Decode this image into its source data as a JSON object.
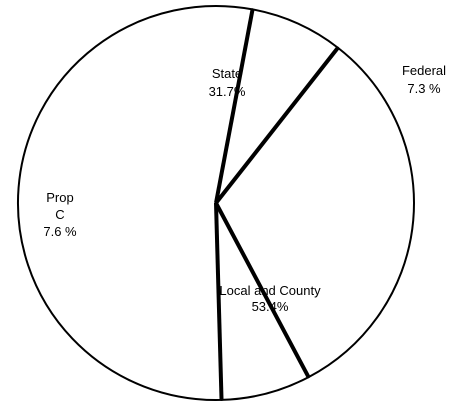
{
  "chart_data": {
    "type": "pie",
    "title": "",
    "slices": [
      {
        "label": "State",
        "label_lines": [
          "State"
        ],
        "value": 31.7,
        "value_text": "31.7%"
      },
      {
        "label": "Federal",
        "label_lines": [
          "Federal"
        ],
        "value": 7.3,
        "value_text": "7.3 %"
      },
      {
        "label": "Local and County",
        "label_lines": [
          "Local and County"
        ],
        "value": 53.4,
        "value_text": "53.4%"
      },
      {
        "label": "Prop C",
        "label_lines": [
          "Prop",
          "C"
        ],
        "value": 7.6,
        "value_text": "7.6 %"
      }
    ],
    "colors": {
      "fill": "#ffffff",
      "stroke": "#000000"
    }
  }
}
